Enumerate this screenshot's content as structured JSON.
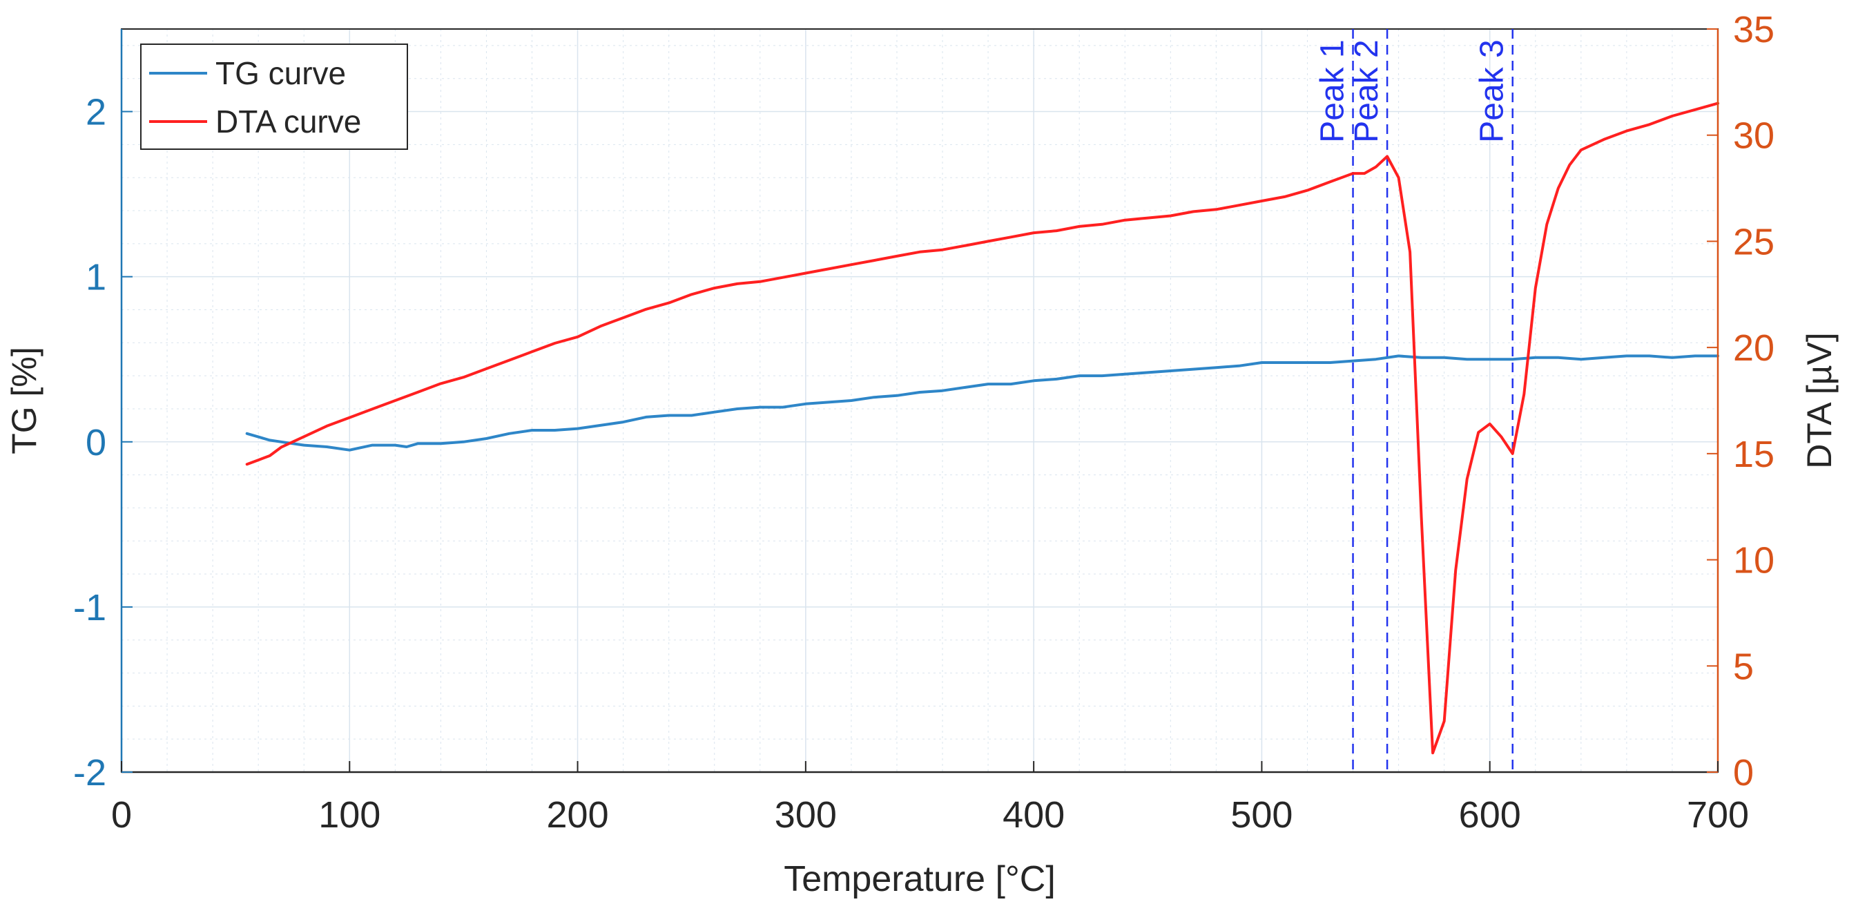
{
  "chart_data": {
    "type": "line",
    "title": "",
    "xlabel": "Temperature [°C]",
    "ylabel_left": "TG [%]",
    "ylabel_right": "DTA [µV]",
    "xlim": [
      0,
      700
    ],
    "ylim_left": [
      -2,
      2.5
    ],
    "ylim_right": [
      0,
      35
    ],
    "xticks": [
      0,
      100,
      200,
      300,
      400,
      500,
      600,
      700
    ],
    "yticks_left": [
      -2,
      -1,
      0,
      1,
      2
    ],
    "yticks_right": [
      0,
      5,
      10,
      15,
      20,
      25,
      30,
      35
    ],
    "xtick_labels": [
      "0",
      "100",
      "200",
      "300",
      "400",
      "500",
      "600",
      "700"
    ],
    "ytick_labels_left": [
      "-2",
      "-1",
      "0",
      "1",
      "2"
    ],
    "ytick_labels_right": [
      "0",
      "5",
      "10",
      "15",
      "20",
      "25",
      "30",
      "35"
    ],
    "grid": true,
    "minor_grid": true,
    "legend": {
      "location": "top-left",
      "entries": [
        "TG curve",
        "DTA curve"
      ]
    },
    "colors": {
      "tg": "#2e86c8",
      "dta": "#ff2020",
      "left_axis": "#1f77b4",
      "right_axis": "#d95319",
      "peaks": "#2233ee",
      "grid": "#d9e4ee"
    },
    "series": [
      {
        "name": "TG curve",
        "axis": "left",
        "x": [
          55,
          60,
          65,
          70,
          80,
          90,
          100,
          110,
          120,
          125,
          130,
          140,
          150,
          160,
          170,
          180,
          190,
          200,
          210,
          220,
          230,
          240,
          250,
          260,
          270,
          280,
          290,
          300,
          310,
          320,
          330,
          340,
          350,
          360,
          370,
          380,
          390,
          400,
          410,
          420,
          430,
          440,
          450,
          460,
          470,
          480,
          490,
          500,
          510,
          520,
          530,
          540,
          550,
          560,
          570,
          580,
          590,
          600,
          610,
          620,
          630,
          640,
          650,
          660,
          670,
          680,
          690,
          700
        ],
        "y": [
          0.05,
          0.03,
          0.01,
          0.0,
          -0.02,
          -0.03,
          -0.05,
          -0.02,
          -0.02,
          -0.03,
          -0.01,
          -0.01,
          0.0,
          0.02,
          0.05,
          0.07,
          0.07,
          0.08,
          0.1,
          0.12,
          0.15,
          0.16,
          0.16,
          0.18,
          0.2,
          0.21,
          0.21,
          0.23,
          0.24,
          0.25,
          0.27,
          0.28,
          0.3,
          0.31,
          0.33,
          0.35,
          0.35,
          0.37,
          0.38,
          0.4,
          0.4,
          0.41,
          0.42,
          0.43,
          0.44,
          0.45,
          0.46,
          0.48,
          0.48,
          0.48,
          0.48,
          0.49,
          0.5,
          0.52,
          0.51,
          0.51,
          0.5,
          0.5,
          0.5,
          0.51,
          0.51,
          0.5,
          0.51,
          0.52,
          0.52,
          0.51,
          0.52,
          0.52
        ]
      },
      {
        "name": "DTA curve",
        "axis": "right",
        "x": [
          55,
          60,
          65,
          70,
          80,
          90,
          100,
          110,
          120,
          130,
          140,
          150,
          160,
          170,
          180,
          190,
          200,
          210,
          220,
          230,
          240,
          250,
          260,
          270,
          280,
          290,
          300,
          310,
          320,
          330,
          340,
          350,
          360,
          370,
          380,
          390,
          400,
          410,
          420,
          430,
          440,
          450,
          460,
          470,
          480,
          490,
          500,
          510,
          520,
          530,
          540,
          545,
          550,
          555,
          560,
          565,
          570,
          575,
          580,
          585,
          590,
          595,
          600,
          605,
          610,
          615,
          620,
          625,
          630,
          635,
          640,
          650,
          660,
          670,
          680,
          690,
          700
        ],
        "y": [
          14.5,
          14.7,
          14.9,
          15.3,
          15.8,
          16.3,
          16.7,
          17.1,
          17.5,
          17.9,
          18.3,
          18.6,
          19.0,
          19.4,
          19.8,
          20.2,
          20.5,
          21.0,
          21.4,
          21.8,
          22.1,
          22.5,
          22.8,
          23.0,
          23.1,
          23.3,
          23.5,
          23.7,
          23.9,
          24.1,
          24.3,
          24.5,
          24.6,
          24.8,
          25.0,
          25.2,
          25.4,
          25.5,
          25.7,
          25.8,
          26.0,
          26.1,
          26.2,
          26.4,
          26.5,
          26.7,
          26.9,
          27.1,
          27.4,
          27.8,
          28.2,
          28.2,
          28.5,
          29.0,
          28.0,
          24.5,
          12.0,
          0.9,
          2.4,
          9.5,
          13.8,
          16.0,
          16.4,
          15.8,
          15.0,
          17.8,
          22.8,
          25.8,
          27.5,
          28.6,
          29.3,
          29.8,
          30.2,
          30.5,
          30.9,
          31.2,
          31.5
        ]
      }
    ],
    "annotations": [
      {
        "label": "Peak 1",
        "x": 540
      },
      {
        "label": "Peak 2",
        "x": 555
      },
      {
        "label": "Peak 3",
        "x": 610
      }
    ]
  }
}
